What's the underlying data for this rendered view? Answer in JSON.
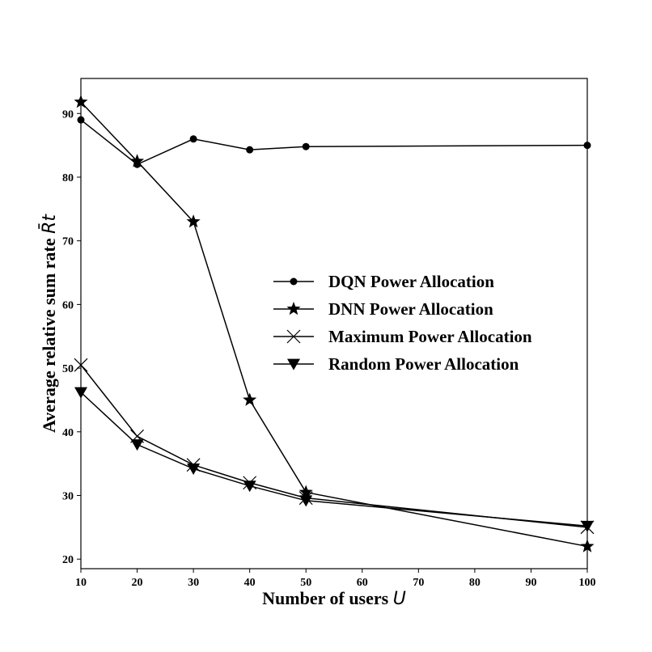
{
  "chart_data": {
    "type": "line",
    "title": "",
    "xlabel": "Number of users U",
    "ylabel": "Average relative sum rate R̄t",
    "x_ticks": [
      10,
      20,
      30,
      40,
      50,
      60,
      70,
      80,
      90,
      100
    ],
    "y_ticks": [
      20,
      30,
      40,
      50,
      60,
      70,
      80,
      90
    ],
    "xlim": [
      10,
      100
    ],
    "ylim": [
      18.5,
      95.5
    ],
    "grid": false,
    "legend_placement": "center-right",
    "x": [
      10,
      20,
      30,
      40,
      50,
      100
    ],
    "series": [
      {
        "name": "DQN Power Allocation",
        "marker": "circle",
        "values": [
          89.0,
          82.0,
          86.0,
          84.3,
          84.8,
          85.0
        ]
      },
      {
        "name": "DNN Power Allocation",
        "marker": "star",
        "values": [
          91.8,
          82.5,
          73.0,
          45.0,
          30.5,
          22.0
        ]
      },
      {
        "name": "Maximum Power Allocation",
        "marker": "x",
        "values": [
          50.5,
          39.3,
          34.8,
          32.0,
          29.6,
          25.0
        ]
      },
      {
        "name": "Random Power Allocation",
        "marker": "triangle-down",
        "values": [
          46.2,
          38.0,
          34.2,
          31.5,
          29.2,
          25.2
        ]
      }
    ],
    "colors": {
      "line": "#000000",
      "background": "#ffffff"
    }
  }
}
